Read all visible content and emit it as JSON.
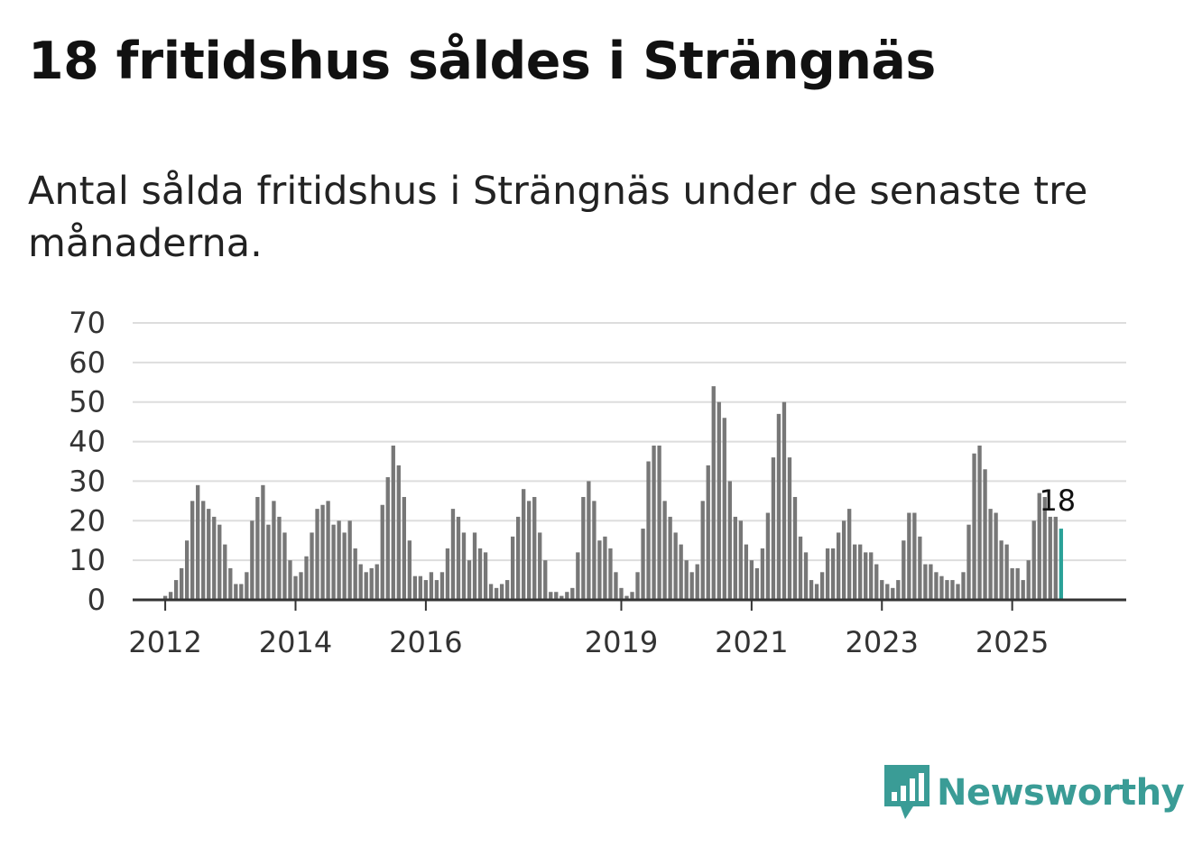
{
  "title": "18 fritidshus såldes i Strängnäs",
  "subtitle": "Antal sålda fritidshus i Strängnäs under de senaste tre månaderna.",
  "brand": {
    "name": "Newsworthy",
    "color": "#3a9c96",
    "icon": "newsworthy-chart-icon"
  },
  "colors": {
    "bar": "#777777",
    "highlight": "#2aa198",
    "grid": "#dddddd",
    "axis": "#333333"
  },
  "chart_data": {
    "type": "bar",
    "title": "18 fritidshus såldes i Strängnäs",
    "xlabel": "",
    "ylabel": "",
    "ylim": [
      0,
      70
    ],
    "yticks": [
      0,
      10,
      20,
      30,
      40,
      50,
      60,
      70
    ],
    "grid": true,
    "x_start": 2011.5,
    "x_end": 2026.75,
    "x_unit": "year",
    "bar_interval": "month",
    "first_bar_month": "2012-01",
    "xticks": [
      {
        "label": "2012",
        "value": 2012
      },
      {
        "label": "2014",
        "value": 2014
      },
      {
        "label": "2016",
        "value": 2016
      },
      {
        "label": "2019",
        "value": 2019
      },
      {
        "label": "2021",
        "value": 2021
      },
      {
        "label": "2023",
        "value": 2023
      },
      {
        "label": "2025",
        "value": 2025
      }
    ],
    "values": [
      1,
      2,
      5,
      8,
      15,
      25,
      29,
      25,
      23,
      21,
      19,
      14,
      8,
      4,
      4,
      7,
      20,
      26,
      29,
      19,
      25,
      21,
      17,
      10,
      6,
      7,
      11,
      17,
      23,
      24,
      25,
      19,
      20,
      17,
      20,
      13,
      9,
      7,
      8,
      9,
      24,
      31,
      39,
      34,
      26,
      15,
      6,
      6,
      5,
      7,
      5,
      7,
      13,
      23,
      21,
      17,
      10,
      17,
      13,
      12,
      4,
      3,
      4,
      5,
      16,
      21,
      28,
      25,
      26,
      17,
      10,
      2,
      2,
      1,
      2,
      3,
      12,
      26,
      30,
      25,
      15,
      16,
      13,
      7,
      3,
      1,
      2,
      7,
      18,
      35,
      39,
      39,
      25,
      21,
      17,
      14,
      10,
      7,
      9,
      25,
      34,
      54,
      50,
      46,
      30,
      21,
      20,
      14,
      10,
      8,
      13,
      22,
      36,
      47,
      50,
      36,
      26,
      16,
      12,
      5,
      4,
      7,
      13,
      13,
      17,
      20,
      23,
      14,
      14,
      12,
      12,
      9,
      5,
      4,
      3,
      5,
      15,
      22,
      22,
      16,
      9,
      9,
      7,
      6,
      5,
      5,
      4,
      7,
      19,
      37,
      39,
      33,
      23,
      22,
      15,
      14,
      8,
      8,
      5,
      10,
      20,
      27,
      26,
      21,
      21,
      18
    ],
    "highlight_last": true,
    "annotation": {
      "label": "18",
      "value": 18
    }
  }
}
